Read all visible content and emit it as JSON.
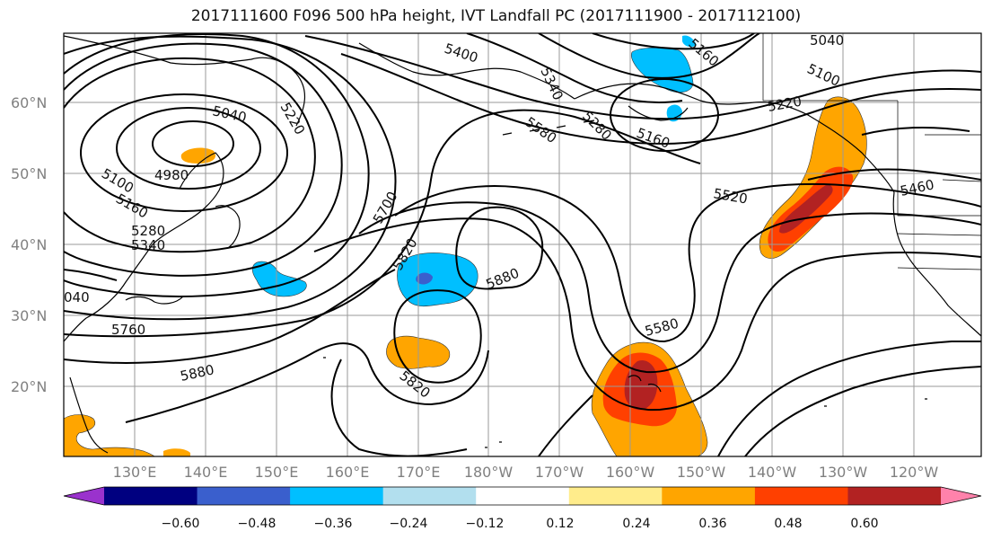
{
  "title": "2017111600 F096 500 hPa height, IVT Landfall PC (2017111900 - 2017112100)",
  "lat_labels": [
    "60°N",
    "50°N",
    "40°N",
    "30°N",
    "20°N"
  ],
  "lon_labels": [
    "130°E",
    "140°E",
    "150°E",
    "160°E",
    "170°E",
    "180°W",
    "170°W",
    "160°W",
    "150°W",
    "140°W",
    "130°W",
    "120°W"
  ],
  "contour_labels": [
    "5040",
    "5220",
    "5400",
    "5340",
    "5160",
    "5100",
    "5040",
    "4980",
    "5100",
    "5160",
    "5280",
    "5340",
    "5700",
    "5580",
    "5280",
    "5160",
    "5220",
    "5520",
    "5460",
    "5820",
    "5880",
    "5580",
    "5760",
    "5880",
    "5820",
    "040"
  ],
  "colorbar": {
    "ticks": [
      "−0.60",
      "−0.48",
      "−0.36",
      "−0.24",
      "−0.12",
      "0.12",
      "0.24",
      "0.36",
      "0.48",
      "0.60"
    ],
    "colors": [
      "#9a32cd",
      "#000080",
      "#3a5fcd",
      "#00bfff",
      "#b2dfee",
      "#ffffff",
      "#ffec8b",
      "#ffa500",
      "#ff4000",
      "#b22222",
      "#ff82ab"
    ]
  }
}
